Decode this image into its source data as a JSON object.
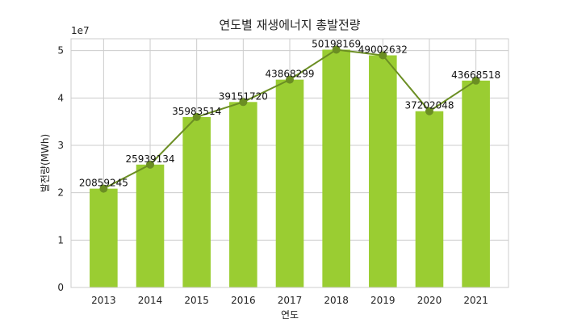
{
  "chart_data": {
    "type": "bar",
    "title": "연도별 재생에너지 총발전량",
    "xlabel": "연도",
    "ylabel": "발전량(MWh)",
    "y_offset_text": "1e7",
    "categories": [
      "2013",
      "2014",
      "2015",
      "2016",
      "2017",
      "2018",
      "2019",
      "2020",
      "2021"
    ],
    "values": [
      20859245,
      25939134,
      35983514,
      39151720,
      43868299,
      50198169,
      49002632,
      37202048,
      43668518
    ],
    "data_labels": [
      "20859245",
      "25939134",
      "35983514",
      "39151720",
      "43868299",
      "50198169",
      "49002632",
      "37202048",
      "43668518"
    ],
    "overlay_line": true,
    "ylim": [
      0,
      52500000
    ],
    "yticks": [
      0,
      10000000,
      20000000,
      30000000,
      40000000,
      50000000
    ],
    "ytick_labels": [
      "0",
      "1",
      "2",
      "3",
      "4",
      "5"
    ],
    "grid": true,
    "colors": {
      "bar": "#9acd32",
      "line": "#6b8e23",
      "grid": "#cccccc",
      "spine": "#cccccc"
    }
  }
}
